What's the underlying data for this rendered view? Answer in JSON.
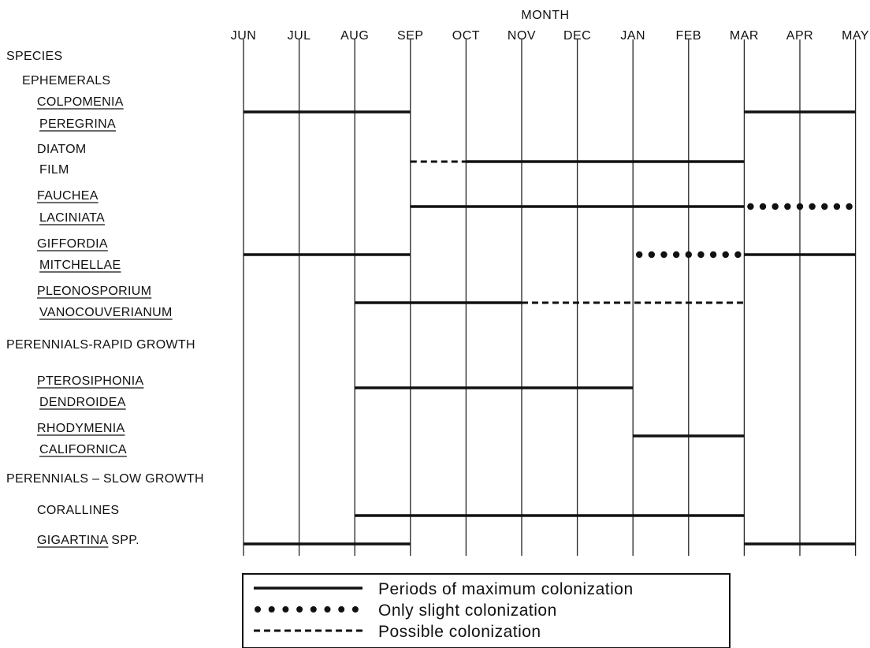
{
  "chart_data": {
    "type": "timeline",
    "x_axis_title": "MONTH",
    "y_axis_title": "SPECIES",
    "months": [
      "JUN",
      "JUL",
      "AUG",
      "SEP",
      "OCT",
      "NOV",
      "DEC",
      "JAN",
      "FEB",
      "MAR",
      "APR",
      "MAY"
    ],
    "rows": [
      {
        "kind": "group",
        "label": "EPHEMERALS"
      },
      {
        "kind": "species",
        "lines": [
          "COLPOMENIA",
          "PEREGRINA"
        ],
        "underline": true,
        "periods": [
          {
            "style": "solid",
            "start": 0,
            "end": 3
          },
          {
            "style": "solid",
            "start": 9,
            "end": 11
          }
        ]
      },
      {
        "kind": "species",
        "lines": [
          "DIATOM",
          "FILM"
        ],
        "underline": false,
        "periods": [
          {
            "style": "dashed",
            "start": 3,
            "end": 4
          },
          {
            "style": "solid",
            "start": 4,
            "end": 9
          }
        ]
      },
      {
        "kind": "species",
        "lines": [
          "FAUCHEA",
          "LACINIATA"
        ],
        "underline": true,
        "periods": [
          {
            "style": "solid",
            "start": 3,
            "end": 9
          },
          {
            "style": "dotted",
            "start": 9,
            "end": 11
          }
        ]
      },
      {
        "kind": "species",
        "lines": [
          "GIFFORDIA",
          "MITCHELLAE"
        ],
        "underline": true,
        "periods": [
          {
            "style": "solid",
            "start": 0,
            "end": 3
          },
          {
            "style": "dotted",
            "start": 7,
            "end": 9
          },
          {
            "style": "solid",
            "start": 9,
            "end": 11
          }
        ]
      },
      {
        "kind": "species",
        "lines": [
          "PLEONOSPORIUM",
          "VANOCOUVERIANUM"
        ],
        "underline": true,
        "periods": [
          {
            "style": "solid",
            "start": 2,
            "end": 5
          },
          {
            "style": "dashed",
            "start": 5,
            "end": 9
          }
        ]
      },
      {
        "kind": "group",
        "label": "PERENNIALS-RAPID GROWTH"
      },
      {
        "kind": "species",
        "lines": [
          "PTEROSIPHONIA",
          "DENDROIDEA"
        ],
        "underline": true,
        "periods": [
          {
            "style": "solid",
            "start": 2,
            "end": 7
          }
        ]
      },
      {
        "kind": "species",
        "lines": [
          "RHODYMENIA",
          "CALIFORNICA"
        ],
        "underline": true,
        "periods": [
          {
            "style": "solid",
            "start": 7,
            "end": 9
          }
        ]
      },
      {
        "kind": "group",
        "label": "PERENNIALS – SLOW GROWTH"
      },
      {
        "kind": "species",
        "lines": [
          "CORALLINES"
        ],
        "underline": false,
        "periods": [
          {
            "style": "solid",
            "start": 2,
            "end": 9
          }
        ]
      },
      {
        "kind": "species",
        "lines": [
          "GIGARTINA SPP."
        ],
        "underline": true,
        "underline_part": "GIGARTINA",
        "periods": [
          {
            "style": "solid",
            "start": 0,
            "end": 3
          },
          {
            "style": "solid",
            "start": 9,
            "end": 11
          }
        ]
      }
    ],
    "legend": [
      {
        "style": "solid",
        "label": "Periods of maximum colonization"
      },
      {
        "style": "dotted",
        "label": "Only slight colonization"
      },
      {
        "style": "dashed",
        "label": "Possible colonization"
      }
    ]
  }
}
